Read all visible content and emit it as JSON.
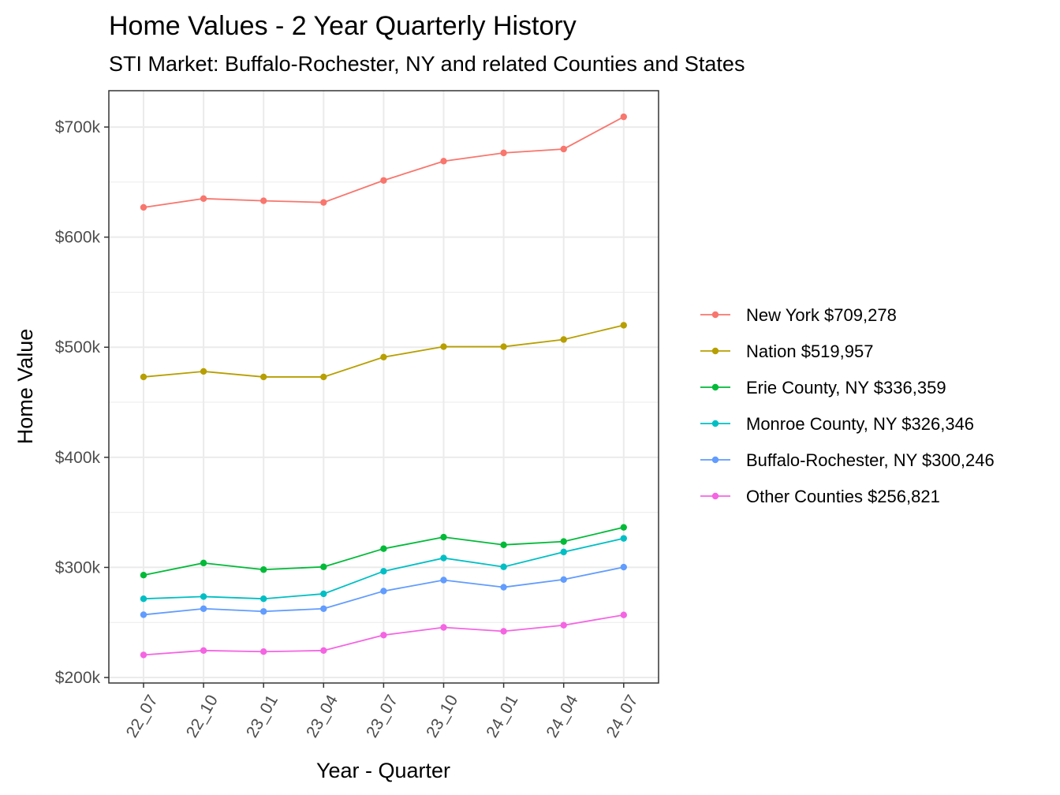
{
  "chart_data": {
    "type": "line",
    "title": "Home Values - 2 Year Quarterly History",
    "subtitle": "STI Market: Buffalo-Rochester, NY and related Counties and States",
    "xlabel": "Year - Quarter",
    "ylabel": "Home Value",
    "categories": [
      "22_07",
      "22_10",
      "23_01",
      "23_04",
      "23_07",
      "23_10",
      "24_01",
      "24_04",
      "24_07"
    ],
    "ylim": [
      195000,
      733000
    ],
    "yticks": [
      200000,
      300000,
      400000,
      500000,
      600000,
      700000
    ],
    "ytick_labels": [
      "$200k",
      "$300k",
      "$400k",
      "$500k",
      "$600k",
      "$700k"
    ],
    "grid": true,
    "legend_position": "right",
    "series": [
      {
        "name": "New York $709,278",
        "color": "#F8766D",
        "values": [
          627000,
          635000,
          633000,
          631500,
          651500,
          669000,
          676500,
          680000,
          709278
        ]
      },
      {
        "name": "Nation $519,957",
        "color": "#B79F00",
        "values": [
          473000,
          478000,
          473000,
          473000,
          491000,
          500500,
          500500,
          507000,
          519957
        ]
      },
      {
        "name": "Erie County, NY $336,359",
        "color": "#00BA38",
        "values": [
          293000,
          304000,
          298000,
          300500,
          317000,
          327500,
          320500,
          323500,
          336359
        ]
      },
      {
        "name": "Monroe County, NY $326,346",
        "color": "#00BFC4",
        "values": [
          271500,
          273500,
          271500,
          276000,
          296500,
          308500,
          300500,
          314000,
          326346
        ]
      },
      {
        "name": "Buffalo-Rochester, NY $300,246",
        "color": "#619CFF",
        "values": [
          257000,
          262500,
          260000,
          262500,
          278500,
          288500,
          282000,
          289000,
          300246
        ]
      },
      {
        "name": "Other Counties $256,821",
        "color": "#F564E3",
        "values": [
          220500,
          224500,
          223500,
          224500,
          238500,
          245500,
          242000,
          247500,
          256821
        ]
      }
    ]
  }
}
